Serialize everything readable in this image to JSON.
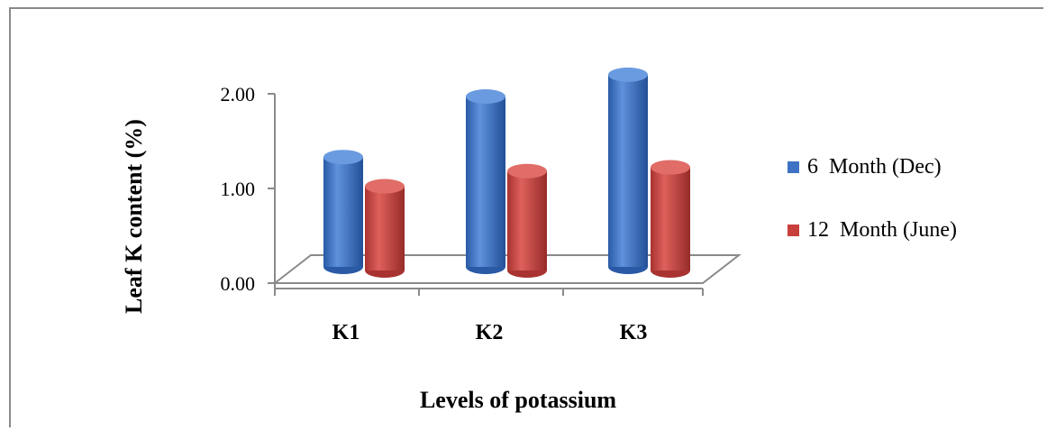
{
  "chart_data": {
    "type": "bar",
    "categories": [
      "K1",
      "K2",
      "K3"
    ],
    "series": [
      {
        "name": "6  Month (Dec)",
        "values": [
          1.16,
          1.8,
          2.03
        ],
        "color": "#3d72c4"
      },
      {
        "name": "12  Month (June)",
        "values": [
          0.89,
          1.05,
          1.09
        ],
        "color": "#c8403c"
      }
    ],
    "yticks": [
      "0.00",
      "1.00",
      "2.00"
    ],
    "ylim": [
      0,
      2
    ],
    "xlabel": "Levels of potassium",
    "ylabel": "Leaf K content (%)",
    "legend_position": "right"
  }
}
